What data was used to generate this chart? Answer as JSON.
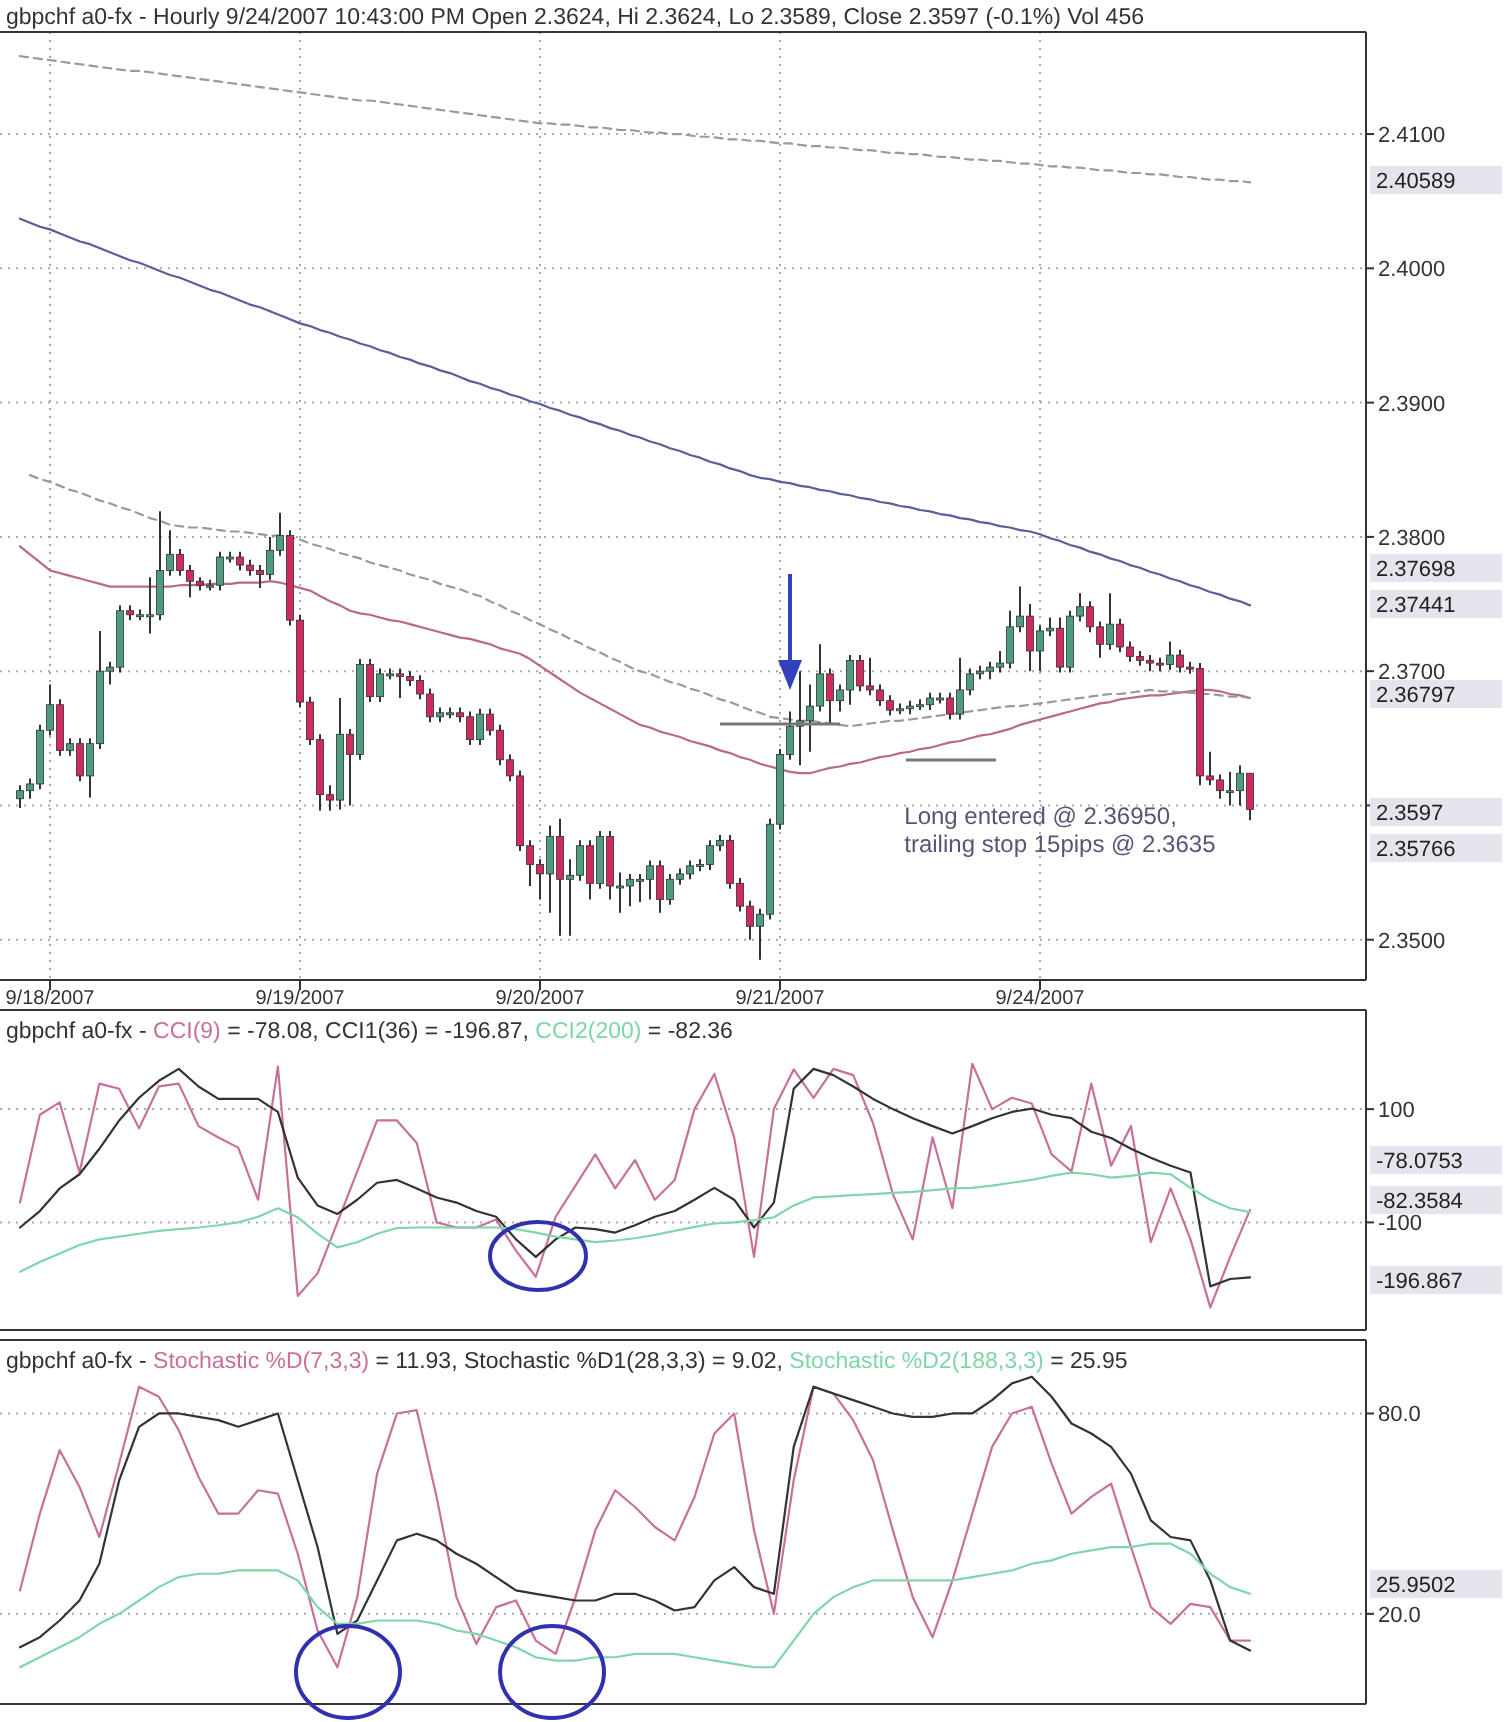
{
  "chart_data": [
    {
      "type": "candlestick",
      "title": "gbpchf a0-fx - Hourly 9/24/2007 10:43:00 PM Open 2.3624, Hi 2.3624, Lo 2.3589, Close 2.3597 (-0.1%) Vol 456",
      "categories": [
        null,
        null,
        null,
        "9/18/2007",
        null,
        null,
        null,
        null,
        null,
        null,
        null,
        null,
        null,
        null,
        null,
        null,
        null,
        null,
        null,
        null,
        null,
        null,
        null,
        null,
        null,
        null,
        null,
        null,
        "9/19/2007",
        null,
        null,
        null,
        null,
        null,
        null,
        null,
        null,
        null,
        null,
        null,
        null,
        null,
        null,
        null,
        null,
        null,
        null,
        null,
        null,
        null,
        null,
        null,
        "9/20/2007",
        null,
        null,
        null,
        null,
        null,
        null,
        null,
        null,
        null,
        null,
        null,
        null,
        null,
        null,
        null,
        null,
        null,
        null,
        null,
        null,
        null,
        null,
        null,
        "9/21/2007",
        null,
        null,
        null,
        null,
        null,
        null,
        null,
        null,
        null,
        null,
        null,
        null,
        null,
        null,
        null,
        null,
        null,
        null,
        null,
        null,
        null,
        null,
        null,
        null,
        null,
        "9/24/2007",
        null,
        null,
        null,
        null,
        null,
        null,
        null,
        null,
        null,
        null,
        null,
        null,
        null,
        null,
        null,
        null,
        null,
        null,
        null,
        null,
        null
      ],
      "ohlc": [
        [
          2.3605,
          2.3615,
          2.3598,
          2.3611
        ],
        [
          2.3611,
          2.362,
          2.3605,
          2.3616
        ],
        [
          2.3616,
          2.366,
          2.3612,
          2.3656
        ],
        [
          2.3656,
          2.369,
          2.3652,
          2.3675
        ],
        [
          2.3675,
          2.3679,
          2.3637,
          2.3641
        ],
        [
          2.3641,
          2.365,
          2.3637,
          2.3646
        ],
        [
          2.3646,
          2.365,
          2.3618,
          2.3622
        ],
        [
          2.3622,
          2.365,
          2.3606,
          2.3646
        ],
        [
          2.3646,
          2.373,
          2.3642,
          2.37
        ],
        [
          2.37,
          2.3707,
          2.369,
          2.3703
        ],
        [
          2.3703,
          2.3749,
          2.3699,
          2.3745
        ],
        [
          2.3745,
          2.3749,
          2.3738,
          2.3742
        ],
        [
          2.3742,
          2.3746,
          2.3738,
          2.3742
        ],
        [
          2.3742,
          2.377,
          2.3728,
          2.3742
        ],
        [
          2.3742,
          2.3819,
          2.3738,
          2.3775
        ],
        [
          2.3775,
          2.3805,
          2.3771,
          2.3787
        ],
        [
          2.3787,
          2.3791,
          2.3771,
          2.3775
        ],
        [
          2.3775,
          2.3779,
          2.3755,
          2.3767
        ],
        [
          2.3767,
          2.377,
          2.376,
          2.3764
        ],
        [
          2.3764,
          2.3768,
          2.376,
          2.3764
        ],
        [
          2.3764,
          2.3789,
          2.376,
          2.3785
        ],
        [
          2.3785,
          2.3789,
          2.3781,
          2.3785
        ],
        [
          2.3785,
          2.3789,
          2.3775,
          2.3779
        ],
        [
          2.3779,
          2.3783,
          2.3771,
          2.3775
        ],
        [
          2.3775,
          2.3779,
          2.3762,
          2.3772
        ],
        [
          2.3772,
          2.38,
          2.3768,
          2.379
        ],
        [
          2.379,
          2.3818,
          2.3786,
          2.3801
        ],
        [
          2.3801,
          2.3805,
          2.3734,
          2.3738
        ],
        [
          2.3738,
          2.3742,
          2.3673,
          2.3677
        ],
        [
          2.3677,
          2.3681,
          2.3645,
          2.3649
        ],
        [
          2.3649,
          2.3653,
          2.3596,
          2.3608
        ],
        [
          2.3608,
          2.3615,
          2.3596,
          2.3604
        ],
        [
          2.3604,
          2.368,
          2.3597,
          2.3653
        ],
        [
          2.3653,
          2.3657,
          2.36,
          2.3638
        ],
        [
          2.3638,
          2.3709,
          2.3634,
          2.3705
        ],
        [
          2.3705,
          2.3709,
          2.3677,
          2.3681
        ],
        [
          2.3681,
          2.3702,
          2.3677,
          2.3698
        ],
        [
          2.3698,
          2.3702,
          2.3694,
          2.3698
        ],
        [
          2.3698,
          2.3702,
          2.368,
          2.3696
        ],
        [
          2.3696,
          2.37,
          2.3689,
          2.3693
        ],
        [
          2.3693,
          2.3697,
          2.3679,
          2.3683
        ],
        [
          2.3683,
          2.3687,
          2.3662,
          2.3666
        ],
        [
          2.3666,
          2.3673,
          2.3662,
          2.3669
        ],
        [
          2.3669,
          2.3673,
          2.3665,
          2.3669
        ],
        [
          2.3669,
          2.3673,
          2.3662,
          2.3666
        ],
        [
          2.3666,
          2.367,
          2.3645,
          2.3649
        ],
        [
          2.3649,
          2.3672,
          2.3645,
          2.3668
        ],
        [
          2.3668,
          2.3672,
          2.3652,
          2.3656
        ],
        [
          2.3656,
          2.366,
          2.363,
          2.3634
        ],
        [
          2.3634,
          2.3638,
          2.3618,
          2.3622
        ],
        [
          2.3622,
          2.3626,
          2.3566,
          2.357
        ],
        [
          2.357,
          2.3574,
          2.354,
          2.3556
        ],
        [
          2.3556,
          2.356,
          2.353,
          2.3549
        ],
        [
          2.3549,
          2.3585,
          2.352,
          2.3577
        ],
        [
          2.3577,
          2.359,
          2.3503,
          2.3545
        ],
        [
          2.3545,
          2.356,
          2.3503,
          2.3548
        ],
        [
          2.3548,
          2.3574,
          2.3544,
          2.357
        ],
        [
          2.357,
          2.3574,
          2.353,
          2.3542
        ],
        [
          2.3542,
          2.3581,
          2.3538,
          2.3577
        ],
        [
          2.3577,
          2.3581,
          2.353,
          2.354
        ],
        [
          2.354,
          2.355,
          2.352,
          2.354
        ],
        [
          2.354,
          2.3549,
          2.3525,
          2.3545
        ],
        [
          2.3545,
          2.3549,
          2.3528,
          2.3545
        ],
        [
          2.3545,
          2.3559,
          2.353,
          2.3555
        ],
        [
          2.3555,
          2.3559,
          2.352,
          2.353
        ],
        [
          2.353,
          2.3549,
          2.3526,
          2.3545
        ],
        [
          2.3545,
          2.3553,
          2.3541,
          2.3549
        ],
        [
          2.3549,
          2.3559,
          2.3545,
          2.3555
        ],
        [
          2.3555,
          2.356,
          2.3551,
          2.3556
        ],
        [
          2.3556,
          2.3574,
          2.3552,
          2.357
        ],
        [
          2.357,
          2.3578,
          2.3566,
          2.3574
        ],
        [
          2.3574,
          2.3578,
          2.3538,
          2.3542
        ],
        [
          2.3542,
          2.3546,
          2.3521,
          2.3525
        ],
        [
          2.3525,
          2.3529,
          2.35,
          2.351
        ],
        [
          2.351,
          2.3523,
          2.3485,
          2.3519
        ],
        [
          2.3519,
          2.359,
          2.3515,
          2.3586
        ],
        [
          2.3586,
          2.3642,
          2.3582,
          2.3638
        ],
        [
          2.3638,
          2.367,
          2.3634,
          2.3659
        ],
        [
          2.3659,
          2.37,
          2.363,
          2.3663
        ],
        [
          2.3663,
          2.369,
          2.364,
          2.3674
        ],
        [
          2.3674,
          2.372,
          2.367,
          2.3698
        ],
        [
          2.3698,
          2.3702,
          2.366,
          2.3678
        ],
        [
          2.3678,
          2.369,
          2.367,
          2.3686
        ],
        [
          2.3686,
          2.3712,
          2.3675,
          2.3708
        ],
        [
          2.3708,
          2.3712,
          2.3685,
          2.3689
        ],
        [
          2.3689,
          2.371,
          2.3682,
          2.3686
        ],
        [
          2.3686,
          2.369,
          2.3674,
          2.3678
        ],
        [
          2.3678,
          2.3682,
          2.3667,
          2.3671
        ],
        [
          2.3671,
          2.3676,
          2.3668,
          2.3672
        ],
        [
          2.3672,
          2.3678,
          2.3668,
          2.3674
        ],
        [
          2.3674,
          2.3679,
          2.3671,
          2.3675
        ],
        [
          2.3675,
          2.3684,
          2.3671,
          2.368
        ],
        [
          2.368,
          2.3684,
          2.3676,
          2.368
        ],
        [
          2.368,
          2.3684,
          2.3664,
          2.3668
        ],
        [
          2.3668,
          2.371,
          2.3664,
          2.3686
        ],
        [
          2.3686,
          2.3702,
          2.3682,
          2.3698
        ],
        [
          2.3698,
          2.3704,
          2.3694,
          2.37
        ],
        [
          2.37,
          2.3707,
          2.3694,
          2.3703
        ],
        [
          2.3703,
          2.3715,
          2.3699,
          2.3706
        ],
        [
          2.3706,
          2.3745,
          2.3702,
          2.3733
        ],
        [
          2.3733,
          2.3763,
          2.3729,
          2.3741
        ],
        [
          2.3741,
          2.375,
          2.37,
          2.3715
        ],
        [
          2.3715,
          2.3734,
          2.37,
          2.373
        ],
        [
          2.373,
          2.374,
          2.3726,
          2.3732
        ],
        [
          2.3732,
          2.374,
          2.3699,
          2.3703
        ],
        [
          2.3703,
          2.3745,
          2.3699,
          2.3741
        ],
        [
          2.3741,
          2.3758,
          2.3737,
          2.3748
        ],
        [
          2.3748,
          2.3752,
          2.3729,
          2.3733
        ],
        [
          2.3733,
          2.3737,
          2.371,
          2.372
        ],
        [
          2.372,
          2.3758,
          2.3716,
          2.3735
        ],
        [
          2.3735,
          2.3739,
          2.3714,
          2.3718
        ],
        [
          2.3718,
          2.3722,
          2.3707,
          2.3711
        ],
        [
          2.3711,
          2.3715,
          2.3704,
          2.3708
        ],
        [
          2.3708,
          2.3712,
          2.37,
          2.3706
        ],
        [
          2.3706,
          2.371,
          2.37,
          2.3705
        ],
        [
          2.3705,
          2.3722,
          2.3701,
          2.3712
        ],
        [
          2.3712,
          2.3716,
          2.3699,
          2.3703
        ],
        [
          2.3703,
          2.3707,
          2.3698,
          2.3702
        ],
        [
          2.3702,
          2.3706,
          2.3615,
          2.3622
        ],
        [
          2.3622,
          2.364,
          2.3615,
          2.3619
        ],
        [
          2.3619,
          2.3623,
          2.3605,
          2.3611
        ],
        [
          2.3611,
          2.3625,
          2.36,
          2.3611
        ],
        [
          2.3611,
          2.363,
          2.36,
          2.3624
        ],
        [
          2.3624,
          2.3624,
          2.3589,
          2.3597
        ]
      ],
      "series": [
        {
          "type": "line",
          "color": "#5a5f9a",
          "values": [
            2.4037,
            2.4034,
            2.4031,
            2.4029,
            2.4026,
            2.4023,
            2.402,
            2.4018,
            2.4015,
            2.4012,
            2.4009,
            2.4006,
            2.4004,
            2.4001,
            2.3998,
            2.3995,
            2.3993,
            2.399,
            2.3987,
            2.3984,
            2.3982,
            2.3979,
            2.3976,
            2.3973,
            2.3971,
            2.3968,
            2.3965,
            2.3962,
            2.3959,
            2.3957,
            2.3954,
            2.3952,
            2.3949,
            2.3947,
            2.3944,
            2.3942,
            2.3939,
            2.3937,
            2.3934,
            2.3932,
            2.3929,
            2.3927,
            2.3924,
            2.3922,
            2.3919,
            2.3916,
            2.3914,
            2.3911,
            2.3909,
            2.3906,
            2.3904,
            2.3901,
            2.3899,
            2.3896,
            2.3894,
            2.3891,
            2.3889,
            2.3886,
            2.3884,
            2.3881,
            2.3879,
            2.3876,
            2.3874,
            2.3871,
            2.3869,
            2.3866,
            2.3864,
            2.3861,
            2.3859,
            2.3856,
            2.3854,
            2.3851,
            2.3849,
            2.3846,
            2.3844,
            2.3843,
            2.3841,
            2.384,
            2.3838,
            2.3837,
            2.3835,
            2.3834,
            2.3832,
            2.3831,
            2.3829,
            2.3828,
            2.3826,
            2.3825,
            2.3823,
            2.3822,
            2.382,
            2.3819,
            2.3817,
            2.3816,
            2.3814,
            2.3813,
            2.3811,
            2.381,
            2.3808,
            2.3807,
            2.3805,
            2.3804,
            2.3802,
            2.3799,
            2.3797,
            2.3794,
            2.3792,
            2.3789,
            2.3787,
            2.3784,
            2.3782,
            2.3779,
            2.3777,
            2.3774,
            2.3772,
            2.3769,
            2.3767,
            2.3764,
            2.3762,
            2.3759,
            2.3757,
            2.3754,
            2.3752,
            2.3749
          ]
        },
        {
          "type": "line",
          "color": "#b86a86",
          "values": [
            2.3793,
            2.3787,
            2.3781,
            2.3775,
            2.3773,
            2.3771,
            2.3769,
            2.3767,
            2.3765,
            2.3763,
            2.3763,
            2.3763,
            2.3763,
            2.3763,
            2.3763,
            2.3763,
            2.3764,
            2.3764,
            2.3764,
            2.3765,
            2.3765,
            2.3765,
            2.3766,
            2.3766,
            2.3766,
            2.3767,
            2.3766,
            2.3764,
            2.3762,
            2.376,
            2.3756,
            2.3752,
            2.3749,
            2.3745,
            2.3743,
            2.3742,
            2.374,
            2.3738,
            2.3737,
            2.3735,
            2.3733,
            2.3731,
            2.3729,
            2.3727,
            2.3725,
            2.3724,
            2.3722,
            2.372,
            2.3717,
            2.3715,
            2.3713,
            2.3709,
            2.3704,
            2.3699,
            2.3694,
            2.3689,
            2.3684,
            2.368,
            2.3676,
            2.3672,
            2.3668,
            2.3664,
            2.366,
            2.3658,
            2.3655,
            2.3653,
            2.3651,
            2.3648,
            2.3646,
            2.3644,
            2.3641,
            2.3639,
            2.3636,
            2.3634,
            2.3631,
            2.3629,
            2.3627,
            2.3625,
            2.3624,
            2.3624,
            2.3626,
            2.3628,
            2.3629,
            2.3631,
            2.3632,
            2.3634,
            2.3636,
            2.3637,
            2.3639,
            2.364,
            2.3642,
            2.3643,
            2.3645,
            2.3647,
            2.3648,
            2.365,
            2.3652,
            2.3653,
            2.3655,
            2.3657,
            2.366,
            2.3662,
            2.3664,
            2.3666,
            2.3668,
            2.367,
            2.3672,
            2.3674,
            2.3676,
            2.3677,
            2.3679,
            2.368,
            2.3681,
            2.3682,
            2.3682,
            2.3683,
            2.3684,
            2.3685,
            2.3686,
            2.3686,
            2.3685,
            2.3683,
            2.3682,
            2.368
          ]
        },
        {
          "type": "line",
          "color": "#9a9a9a",
          "line_style": "dashed",
          "values": [
            2.4158,
            2.4157,
            2.4156,
            2.4155,
            2.4154,
            2.4153,
            2.4152,
            2.4151,
            2.415,
            2.4149,
            2.4148,
            2.4147,
            2.4147,
            2.4146,
            2.4145,
            2.4144,
            2.4143,
            2.4142,
            2.4141,
            2.414,
            2.4139,
            2.4138,
            2.4137,
            2.4136,
            2.4135,
            2.4134,
            2.4133,
            2.4132,
            2.4131,
            2.413,
            2.4129,
            2.4128,
            2.4127,
            2.4126,
            2.4125,
            2.4125,
            2.4124,
            2.4123,
            2.4122,
            2.4121,
            2.412,
            2.4119,
            2.4118,
            2.4117,
            2.4116,
            2.4115,
            2.4114,
            2.4113,
            2.4112,
            2.4111,
            2.411,
            2.4109,
            2.4108,
            2.4108,
            2.4107,
            2.4107,
            2.4106,
            2.4105,
            2.4105,
            2.4104,
            2.4103,
            2.4103,
            2.4102,
            2.4101,
            2.4101,
            2.41,
            2.41,
            2.4099,
            2.4098,
            2.4098,
            2.4097,
            2.4096,
            2.4096,
            2.4095,
            2.4095,
            2.4094,
            2.4093,
            2.4093,
            2.4092,
            2.4091,
            2.4091,
            2.409,
            2.409,
            2.4089,
            2.4088,
            2.4088,
            2.4087,
            2.4086,
            2.4086,
            2.4085,
            2.4085,
            2.4084,
            2.4083,
            2.4083,
            2.4082,
            2.4081,
            2.4081,
            2.408,
            2.408,
            2.4079,
            2.4078,
            2.4078,
            2.4077,
            2.4076,
            2.4076,
            2.4075,
            2.4075,
            2.4074,
            2.4073,
            2.4073,
            2.4072,
            2.4071,
            2.4071,
            2.407,
            2.407,
            2.4069,
            2.4068,
            2.4068,
            2.4067,
            2.4066,
            2.4066,
            2.4065,
            2.4065,
            2.4064
          ]
        },
        {
          "type": "line",
          "color": "#9a9a9a",
          "line_style": "dashed",
          "values": [
            null,
            2.3846,
            2.3843,
            2.3841,
            2.3838,
            2.3835,
            2.3833,
            2.383,
            2.3827,
            2.3825,
            2.3822,
            2.382,
            2.3817,
            2.3814,
            2.3812,
            2.3809,
            2.3808,
            2.3807,
            2.3807,
            2.3806,
            2.3805,
            2.3804,
            2.3804,
            2.3803,
            2.3802,
            2.3801,
            2.3801,
            2.38,
            2.3798,
            2.3795,
            2.3793,
            2.3791,
            2.3788,
            2.3786,
            2.3784,
            2.3781,
            2.3779,
            2.3777,
            2.3775,
            2.3772,
            2.377,
            2.3768,
            2.3765,
            2.3763,
            2.3761,
            2.3758,
            2.3756,
            2.3752,
            2.3749,
            2.3745,
            2.3742,
            2.3738,
            2.3735,
            2.3731,
            2.3728,
            2.3724,
            2.3721,
            2.3717,
            2.3714,
            2.371,
            2.3707,
            2.3703,
            2.37,
            2.3698,
            2.3695,
            2.3692,
            2.369,
            2.3687,
            2.3685,
            2.3682,
            2.3679,
            2.3677,
            2.3674,
            2.3671,
            2.3669,
            2.3666,
            2.3665,
            2.3664,
            2.3663,
            2.3663,
            2.3662,
            2.3661,
            2.366,
            2.3659,
            2.366,
            2.3661,
            2.3662,
            2.3663,
            2.3663,
            2.3664,
            2.3665,
            2.3666,
            2.3667,
            2.3668,
            2.3669,
            2.367,
            2.3671,
            2.3672,
            2.3673,
            2.3674,
            2.3674,
            2.3675,
            2.3676,
            2.3677,
            2.3678,
            2.3679,
            2.368,
            2.3681,
            2.3682,
            2.3683,
            2.3683,
            2.3684,
            2.3685,
            2.3686,
            2.3685,
            2.3685,
            2.3684,
            2.3684,
            2.3683,
            2.3683,
            2.3682,
            2.3681,
            2.3681,
            2.368
          ]
        }
      ],
      "ylim": [
        2.347,
        2.4176
      ],
      "yticks": [
        {
          "value": 2.35,
          "label": "2.3500"
        },
        {
          "value": 2.36,
          "label": null
        },
        {
          "value": 2.37,
          "label": "2.3700"
        },
        {
          "value": 2.38,
          "label": "2.3800"
        },
        {
          "value": 2.39,
          "label": "2.3900"
        },
        {
          "value": 2.4,
          "label": "2.4000"
        },
        {
          "value": 2.41,
          "label": "2.4100"
        }
      ],
      "grid": true,
      "annotations": [
        "Long entered @ 2.36950,\ntrailing stop 15pips @ 2.3635",
        "2.40589",
        "2.37698",
        "2.37441",
        "2.36797",
        "2.3597",
        "2.35766"
      ]
    },
    {
      "type": "line",
      "title": "gbpchf a0-fx -",
      "categories": [
        null,
        null,
        null,
        null,
        null,
        null,
        null,
        null,
        null,
        null,
        null,
        null,
        null,
        null,
        null,
        null,
        null,
        null,
        null,
        null,
        null,
        null,
        null,
        null,
        null,
        null,
        null,
        null,
        null,
        null,
        null,
        null,
        null,
        null,
        null,
        null,
        null,
        null,
        null,
        null,
        null,
        null,
        null,
        null,
        null,
        null,
        null,
        null,
        null,
        null,
        null,
        null,
        null,
        null,
        null,
        null,
        null,
        null,
        null,
        null,
        null,
        null,
        null
      ],
      "series": [
        {
          "name": "CCI(9)",
          "color": "#c8709a",
          "values": [
            -65,
            90,
            112,
            -12,
            145,
            136,
            66,
            140,
            145,
            70,
            50,
            32,
            -60,
            175,
            -230,
            -190,
            -100,
            -10,
            80,
            80,
            40,
            -100,
            -109,
            -109,
            -95,
            -150,
            -196,
            -90,
            -35,
            20,
            -40,
            10,
            -60,
            -25,
            100,
            162,
            50,
            -161,
            100,
            170,
            120,
            171,
            160,
            75,
            -50,
            -130,
            50,
            -75,
            180,
            100,
            120,
            110,
            20,
            -10,
            145,
            0,
            70,
            -135,
            -40,
            -130,
            -250,
            -161,
            -78
          ]
        },
        {
          "name": "CCI1(36)",
          "color": "#333333",
          "values": [
            -109,
            -80,
            -40,
            -15,
            30,
            80,
            120,
            150,
            171,
            140,
            118,
            118,
            118,
            95,
            -21,
            -70,
            -85,
            -60,
            -30,
            -25,
            -40,
            -56,
            -65,
            -80,
            -90,
            -130,
            -161,
            -130,
            -109,
            -112,
            -118,
            -105,
            -90,
            -80,
            -60,
            -39,
            -60,
            -109,
            -65,
            136,
            171,
            160,
            140,
            118,
            100,
            84,
            70,
            57,
            70,
            84,
            95,
            101,
            90,
            84,
            60,
            49,
            30,
            14,
            0,
            -12,
            -213,
            -200,
            -197
          ]
        },
        {
          "name": "CCI2(200)",
          "color": "#7fd6a8",
          "values": [
            -187,
            -170,
            -155,
            -140,
            -130,
            -125,
            -120,
            -115,
            -112,
            -109,
            -105,
            -100,
            -90,
            -75,
            -91,
            -120,
            -144,
            -135,
            -120,
            -110,
            -109,
            -109,
            -109,
            -109,
            -109,
            -112,
            -118,
            -125,
            -130,
            -135,
            -132,
            -128,
            -122,
            -115,
            -108,
            -102,
            -100,
            -96,
            -91,
            -70,
            -56,
            -54,
            -52,
            -50,
            -48,
            -46,
            -43,
            -40,
            -39,
            -35,
            -30,
            -25,
            -18,
            -12,
            -15,
            -21,
            -18,
            -12,
            -15,
            -39,
            -60,
            -75,
            -82
          ]
        }
      ],
      "ylim": [
        -290,
        275
      ],
      "yticks": [
        {
          "value": 100,
          "label": "100"
        },
        {
          "value": -100,
          "label": "-100"
        }
      ],
      "grid": "y",
      "legend": "top left",
      "tick_labels": "y",
      "annotations": [
        "= -78.08,",
        "= -196.87,",
        "= -82.36",
        "-78.0753",
        "-82.3584",
        "-196.867"
      ]
    },
    {
      "type": "line",
      "title": "gbpchf a0-fx -",
      "categories": [
        null,
        null,
        null,
        null,
        null,
        null,
        null,
        null,
        null,
        null,
        null,
        null,
        null,
        null,
        null,
        null,
        null,
        null,
        null,
        null,
        null,
        null,
        null,
        null,
        null,
        null,
        null,
        null,
        null,
        null,
        null,
        null,
        null,
        null,
        null,
        null,
        null,
        null,
        null,
        null,
        null,
        null,
        null,
        null,
        null,
        null,
        null,
        null,
        null,
        null,
        null,
        null,
        null,
        null,
        null,
        null,
        null,
        null,
        null,
        null,
        null,
        null,
        null
      ],
      "series": [
        {
          "name": "Stochastic %D(7,3,3)",
          "color": "#c8709a",
          "values": [
            27,
            50,
            69,
            58,
            43,
            65,
            88,
            85,
            75,
            61,
            50,
            50,
            57,
            56,
            38,
            15,
            4,
            25,
            62,
            80,
            81,
            55,
            25,
            11,
            22,
            24,
            12,
            8,
            25,
            45,
            57,
            52,
            46,
            42,
            55,
            74,
            80,
            45,
            20,
            60,
            88,
            86,
            78,
            66,
            45,
            25,
            13,
            30,
            50,
            70,
            80,
            82,
            65,
            50,
            55,
            59,
            40,
            22,
            17,
            23,
            22,
            12,
            12
          ]
        },
        {
          "name": "Stochastic %D1(28,3,3)",
          "color": "#333333",
          "values": [
            10,
            13,
            18,
            24,
            35,
            60,
            76,
            80,
            80,
            79,
            78,
            76,
            78,
            80,
            60,
            40,
            14,
            18,
            30,
            42,
            44,
            42,
            38,
            35,
            31,
            27,
            26,
            25,
            24,
            24,
            26,
            26,
            24,
            21,
            22,
            30,
            34,
            28,
            26,
            70,
            88,
            86,
            84,
            82,
            80,
            79,
            79,
            80,
            80,
            84,
            89,
            91,
            85,
            77,
            74,
            70,
            62,
            48,
            43,
            42,
            30,
            12,
            9
          ]
        },
        {
          "name": "Stochastic %D2(188,3,3)",
          "color": "#7fd6a8",
          "values": [
            4,
            7,
            10,
            13,
            17,
            20,
            24,
            28,
            31,
            32,
            32,
            33,
            33,
            33,
            30,
            22,
            17,
            17,
            18,
            18,
            18,
            17,
            15,
            14,
            12,
            10,
            7,
            6,
            6,
            7,
            7,
            8,
            8,
            8,
            7,
            6,
            5,
            4,
            4,
            12,
            20,
            25,
            28,
            30,
            30,
            30,
            30,
            30,
            31,
            32,
            33,
            35,
            36,
            38,
            39,
            40,
            40,
            41,
            41,
            38,
            32,
            28,
            26
          ]
        }
      ],
      "ylim": [
        -7,
        102
      ],
      "yticks": [
        {
          "value": 80,
          "label": "80.0"
        },
        {
          "value": 20,
          "label": "20.0"
        }
      ],
      "grid": "y",
      "legend": "top left",
      "tick_labels": "y",
      "annotations": [
        "= 11.93,",
        "= 9.02,",
        "= 25.95",
        "25.9502"
      ]
    }
  ]
}
